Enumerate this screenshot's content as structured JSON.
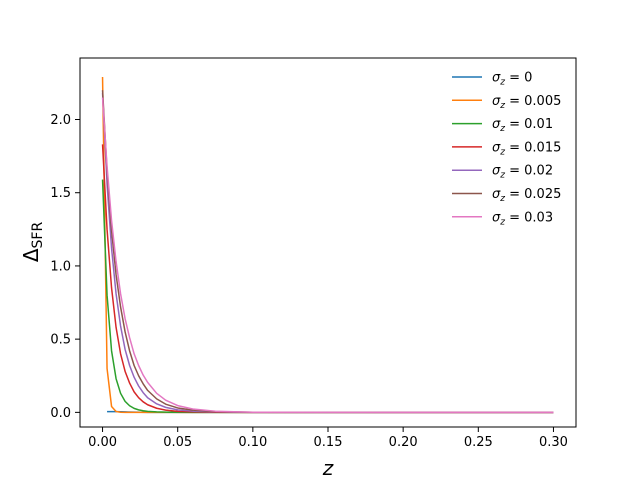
{
  "chart_data": {
    "type": "line",
    "xlabel": "z",
    "ylabel": "Δ",
    "ylabel_subscript": "SFR",
    "xlim": [
      -0.015,
      0.315
    ],
    "ylim": [
      -0.1,
      2.42
    ],
    "xticks": [
      0.0,
      0.05,
      0.1,
      0.15,
      0.2,
      0.25,
      0.3
    ],
    "xtick_labels": [
      "0.00",
      "0.05",
      "0.10",
      "0.15",
      "0.20",
      "0.25",
      "0.30"
    ],
    "yticks": [
      0.0,
      0.5,
      1.0,
      1.5,
      2.0
    ],
    "ytick_labels": [
      "0.0",
      "0.5",
      "1.0",
      "1.5",
      "2.0"
    ],
    "grid": false,
    "legend_position": "top-right",
    "series": [
      {
        "name": "σz = 0",
        "legend_main": "σ",
        "legend_sub": "z",
        "legend_tail": " = 0",
        "color": "#1f77b4",
        "x": [
          0.003,
          0.006,
          0.009,
          0.012,
          0.015,
          0.03,
          0.1,
          0.2,
          0.3
        ],
        "y": [
          0.005,
          0.005,
          0.005,
          0.004,
          0.003,
          0.0,
          0.0,
          0.0,
          0.0
        ]
      },
      {
        "name": "σz = 0.005",
        "legend_main": "σ",
        "legend_sub": "z",
        "legend_tail": " = 0.005",
        "color": "#ff7f0e",
        "x": [
          0.0,
          0.003,
          0.006,
          0.009,
          0.012,
          0.015,
          0.03,
          0.1,
          0.2,
          0.3
        ],
        "y": [
          2.29,
          0.3,
          0.04,
          0.006,
          0.001,
          0.0,
          0.0,
          0.0,
          0.0,
          0.0
        ]
      },
      {
        "name": "σz = 0.01",
        "legend_main": "σ",
        "legend_sub": "z",
        "legend_tail": " = 0.01",
        "color": "#2ca02c",
        "x": [
          0.0,
          0.003,
          0.006,
          0.009,
          0.012,
          0.015,
          0.018,
          0.021,
          0.024,
          0.027,
          0.03,
          0.036,
          0.045,
          0.06,
          0.1,
          0.2,
          0.3
        ],
        "y": [
          1.59,
          0.8,
          0.42,
          0.23,
          0.13,
          0.075,
          0.045,
          0.027,
          0.017,
          0.011,
          0.007,
          0.003,
          0.001,
          0.0,
          0.0,
          0.0,
          0.0
        ]
      },
      {
        "name": "σz = 0.015",
        "legend_main": "σ",
        "legend_sub": "z",
        "legend_tail": " = 0.015",
        "color": "#d62728",
        "x": [
          0.0,
          0.003,
          0.006,
          0.009,
          0.012,
          0.015,
          0.018,
          0.021,
          0.024,
          0.027,
          0.03,
          0.036,
          0.042,
          0.05,
          0.06,
          0.075,
          0.1,
          0.2,
          0.3
        ],
        "y": [
          1.83,
          1.25,
          0.85,
          0.58,
          0.4,
          0.28,
          0.2,
          0.14,
          0.1,
          0.072,
          0.052,
          0.028,
          0.015,
          0.007,
          0.003,
          0.001,
          0.0,
          0.0,
          0.0
        ]
      },
      {
        "name": "σz = 0.02",
        "legend_main": "σ",
        "legend_sub": "z",
        "legend_tail": " = 0.02",
        "color": "#9467bd",
        "x": [
          0.0,
          0.003,
          0.006,
          0.009,
          0.012,
          0.015,
          0.018,
          0.021,
          0.024,
          0.027,
          0.03,
          0.036,
          0.042,
          0.05,
          0.06,
          0.075,
          0.1,
          0.2,
          0.3
        ],
        "y": [
          2.18,
          1.56,
          1.12,
          0.81,
          0.59,
          0.43,
          0.32,
          0.24,
          0.18,
          0.135,
          0.1,
          0.058,
          0.034,
          0.017,
          0.008,
          0.003,
          0.0,
          0.0,
          0.0
        ]
      },
      {
        "name": "σz = 0.025",
        "legend_main": "σ",
        "legend_sub": "z",
        "legend_tail": " = 0.025",
        "color": "#8c564b",
        "x": [
          0.0,
          0.003,
          0.006,
          0.009,
          0.012,
          0.015,
          0.018,
          0.021,
          0.024,
          0.027,
          0.03,
          0.036,
          0.042,
          0.05,
          0.06,
          0.075,
          0.1,
          0.2,
          0.3
        ],
        "y": [
          2.2,
          1.65,
          1.24,
          0.94,
          0.72,
          0.55,
          0.42,
          0.32,
          0.25,
          0.195,
          0.15,
          0.092,
          0.056,
          0.03,
          0.015,
          0.005,
          0.001,
          0.0,
          0.0
        ]
      },
      {
        "name": "σz = 0.03",
        "legend_main": "σ",
        "legend_sub": "z",
        "legend_tail": " = 0.03",
        "color": "#e377c2",
        "x": [
          0.0,
          0.003,
          0.006,
          0.009,
          0.012,
          0.015,
          0.018,
          0.021,
          0.024,
          0.027,
          0.03,
          0.036,
          0.042,
          0.05,
          0.06,
          0.075,
          0.1,
          0.2,
          0.3
        ],
        "y": [
          2.15,
          1.68,
          1.31,
          1.03,
          0.81,
          0.64,
          0.51,
          0.4,
          0.32,
          0.255,
          0.205,
          0.13,
          0.083,
          0.046,
          0.023,
          0.008,
          0.001,
          0.0,
          0.0
        ]
      }
    ]
  }
}
